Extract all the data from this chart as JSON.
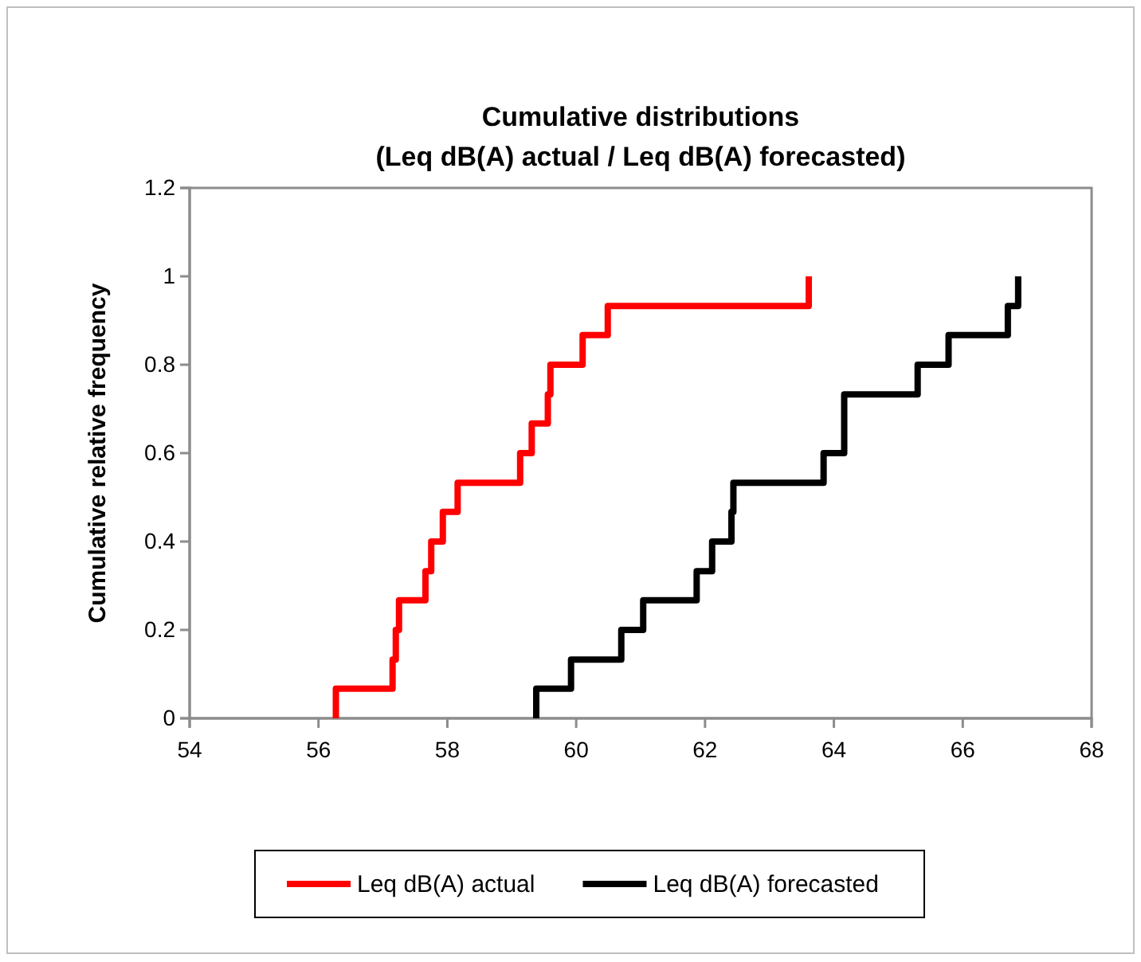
{
  "chart_data": {
    "type": "step",
    "title": "Cumulative distributions\n(Leq dB(A) actual / Leq dB(A) forecasted)",
    "ylabel": "Cumulative relative frequency",
    "xlim": [
      54,
      68
    ],
    "xticks": [
      54,
      56,
      58,
      60,
      62,
      64,
      66,
      68
    ],
    "ylim": [
      0,
      1.2
    ],
    "yticks": [
      0,
      0.2,
      0.4,
      0.6,
      0.8,
      1,
      1.2
    ],
    "grid": false,
    "legend": "bottom",
    "series": [
      {
        "name": "Leq dB(A) actual",
        "color": "#ff0000",
        "x": [
          56.27,
          56.27,
          57.15,
          57.2,
          57.25,
          57.66,
          57.75,
          57.93,
          58.16,
          59.13,
          59.31,
          59.56,
          59.6,
          60.1,
          60.49,
          63.61
        ],
        "values": [
          0,
          0.067,
          0.133,
          0.2,
          0.267,
          0.333,
          0.4,
          0.467,
          0.533,
          0.6,
          0.667,
          0.733,
          0.8,
          0.867,
          0.933,
          1
        ]
      },
      {
        "name": "Leq dB(A) forecasted",
        "color": "#000000",
        "x": [
          59.38,
          59.38,
          59.92,
          60.7,
          61.04,
          61.87,
          62.11,
          62.41,
          62.44,
          63.84,
          64.16,
          64.16,
          65.3,
          65.78,
          66.7,
          66.86
        ],
        "values": [
          0,
          0.067,
          0.133,
          0.2,
          0.267,
          0.333,
          0.4,
          0.467,
          0.533,
          0.6,
          0.667,
          0.733,
          0.8,
          0.867,
          0.933,
          1
        ]
      }
    ]
  }
}
